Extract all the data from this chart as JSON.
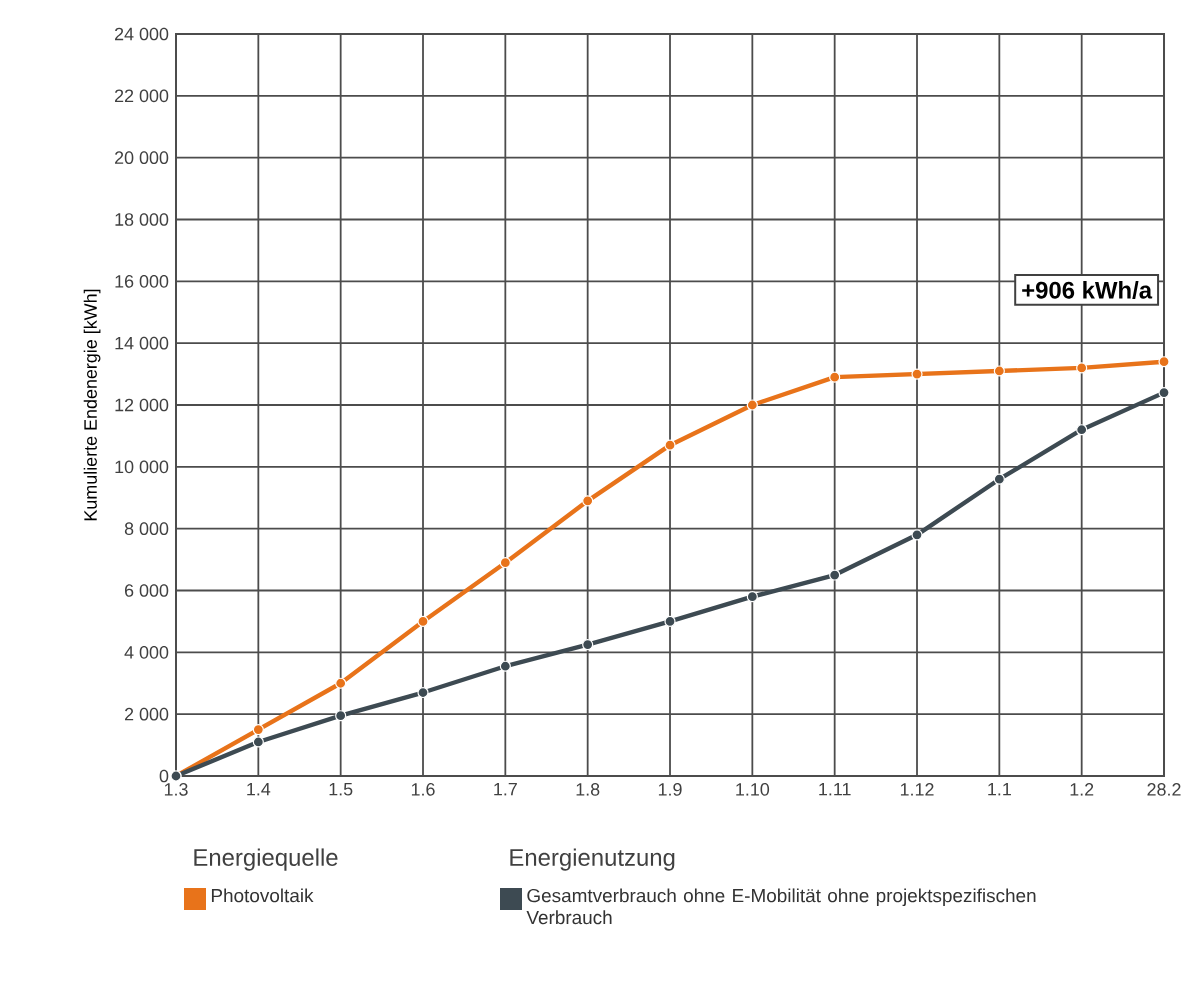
{
  "chart_data": {
    "type": "line",
    "ylabel": "Kumulierte Endenergie [kWh]",
    "categories": [
      "1.3",
      "1.4",
      "1.5",
      "1.6",
      "1.7",
      "1.8",
      "1.9",
      "1.10",
      "1.11",
      "1.12",
      "1.1",
      "1.2",
      "28.2"
    ],
    "series": [
      {
        "name": "Photovoltaik",
        "color": "#e8731a",
        "values": [
          0,
          1500,
          3000,
          5000,
          6900,
          8900,
          10700,
          12000,
          12900,
          13000,
          13100,
          13200,
          13400
        ]
      },
      {
        "name": "Gesamtverbrauch ohne E-Mobilität ohne projektspezifischen Verbrauch",
        "color": "#3d4a52",
        "values": [
          0,
          1100,
          1950,
          2700,
          3550,
          4250,
          5000,
          5800,
          6500,
          7800,
          9600,
          11200,
          12400
        ]
      }
    ],
    "ylim": [
      0,
      24000
    ],
    "yticks": [
      {
        "value": 0,
        "label": "0"
      },
      {
        "value": 2000,
        "label": "2 000"
      },
      {
        "value": 4000,
        "label": "4 000"
      },
      {
        "value": 6000,
        "label": "6 000"
      },
      {
        "value": 8000,
        "label": "8 000"
      },
      {
        "value": 10000,
        "label": "10 000"
      },
      {
        "value": 12000,
        "label": "12 000"
      },
      {
        "value": 14000,
        "label": "14 000"
      },
      {
        "value": 16000,
        "label": "16 000"
      },
      {
        "value": 18000,
        "label": "18 000"
      },
      {
        "value": 20000,
        "label": "20 000"
      },
      {
        "value": 22000,
        "label": "22 000"
      },
      {
        "value": 24000,
        "label": "24 000"
      }
    ],
    "annotations": [
      "+906 kWh/a",
      "Energiequelle",
      "Energienutzung"
    ],
    "grid": true,
    "legend": "bottom",
    "marker": "circle",
    "line_style": "solid"
  }
}
